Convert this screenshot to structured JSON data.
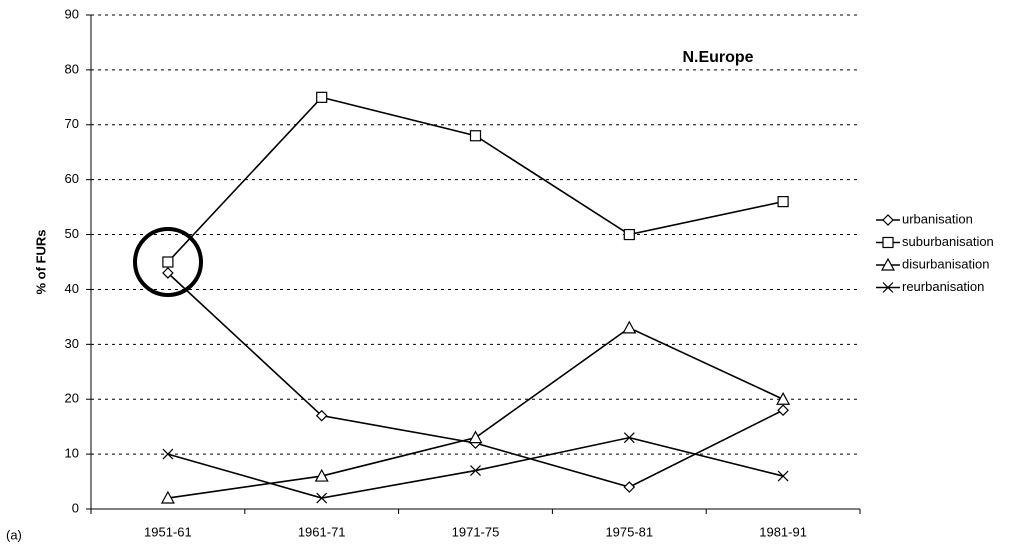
{
  "chart_data": {
    "type": "line",
    "panel_label": "(a)",
    "annotation": "N.Europe",
    "y_label": "% of FURs",
    "categories": [
      "1951-61",
      "1961-71",
      "1971-75",
      "1975-81",
      "1981-91"
    ],
    "series": [
      {
        "name": "urbanisation",
        "color": "#000000",
        "marker": "diamond",
        "values": [
          43,
          17,
          12,
          4,
          18
        ]
      },
      {
        "name": "suburbanisation",
        "color": "#000000",
        "marker": "square",
        "values": [
          45,
          75,
          68,
          50,
          56
        ]
      },
      {
        "name": "disurbanisation",
        "color": "#000000",
        "marker": "triangle",
        "values": [
          2,
          6,
          13,
          33,
          20
        ]
      },
      {
        "name": "reurbanisation",
        "color": "#000000",
        "marker": "x",
        "values": [
          10,
          2,
          7,
          13,
          6
        ]
      }
    ],
    "ylim": [
      0,
      90
    ],
    "yticks": [
      0,
      10,
      20,
      30,
      40,
      50,
      60,
      70,
      80,
      90
    ],
    "grid": true,
    "legend": "right"
  }
}
